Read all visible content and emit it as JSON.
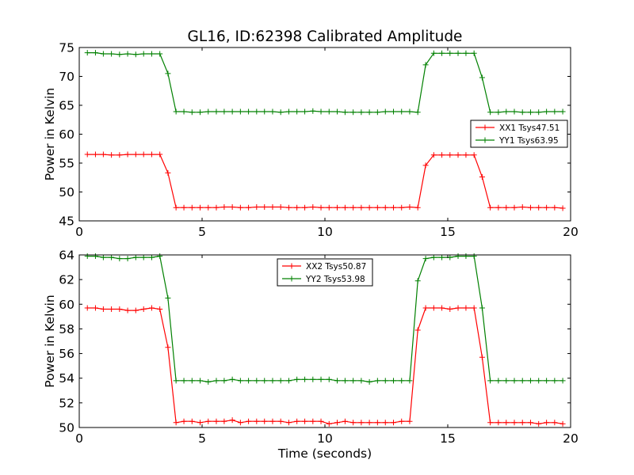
{
  "title": "GL16, ID:62398 Calibrated Amplitude",
  "colors": {
    "xx": "#ff0000",
    "yy": "#008000"
  },
  "chart_data": [
    {
      "type": "line",
      "xlabel": "",
      "ylabel": "Power in Kelvin",
      "xlim": [
        0,
        20
      ],
      "ylim": [
        45,
        75
      ],
      "xticks": [
        "0",
        "5",
        "10",
        "15",
        "20"
      ],
      "yticks": [
        "45",
        "50",
        "55",
        "60",
        "65",
        "70",
        "75"
      ],
      "legend_position": "right",
      "x": [
        0.33,
        0.66,
        0.98,
        1.31,
        1.64,
        1.97,
        2.3,
        2.62,
        2.95,
        3.28,
        3.61,
        3.94,
        4.26,
        4.59,
        4.92,
        5.25,
        5.58,
        5.9,
        6.23,
        6.56,
        6.89,
        7.22,
        7.54,
        7.87,
        8.2,
        8.53,
        8.86,
        9.18,
        9.51,
        9.84,
        10.17,
        10.5,
        10.82,
        11.15,
        11.48,
        11.81,
        12.14,
        12.46,
        12.79,
        13.12,
        13.45,
        13.78,
        14.1,
        14.43,
        14.76,
        15.09,
        15.42,
        15.74,
        16.07,
        16.4,
        16.73,
        17.06,
        17.38,
        17.71,
        18.04,
        18.37,
        18.7,
        19.02,
        19.35,
        19.68
      ],
      "series": [
        {
          "name": "XX1 Tsys47.51",
          "color": "#ff0000",
          "values": [
            56.5,
            56.5,
            56.5,
            56.4,
            56.4,
            56.5,
            56.5,
            56.5,
            56.5,
            56.5,
            53.3,
            47.3,
            47.3,
            47.3,
            47.3,
            47.3,
            47.3,
            47.4,
            47.4,
            47.3,
            47.3,
            47.4,
            47.4,
            47.4,
            47.4,
            47.3,
            47.3,
            47.3,
            47.4,
            47.3,
            47.3,
            47.3,
            47.3,
            47.3,
            47.3,
            47.3,
            47.3,
            47.3,
            47.3,
            47.3,
            47.4,
            47.3,
            54.6,
            56.4,
            56.4,
            56.4,
            56.4,
            56.4,
            56.4,
            52.6,
            47.3,
            47.3,
            47.3,
            47.3,
            47.4,
            47.3,
            47.3,
            47.3,
            47.3,
            47.2
          ]
        },
        {
          "name": "YY1 Tsys63.95",
          "color": "#008000",
          "values": [
            74.1,
            74.1,
            73.9,
            73.9,
            73.8,
            73.9,
            73.8,
            73.9,
            73.9,
            73.9,
            70.5,
            63.9,
            63.9,
            63.8,
            63.8,
            63.9,
            63.9,
            63.9,
            63.9,
            63.9,
            63.9,
            63.9,
            63.9,
            63.9,
            63.8,
            63.9,
            63.9,
            63.9,
            64.0,
            63.9,
            63.9,
            63.9,
            63.8,
            63.8,
            63.8,
            63.8,
            63.8,
            63.9,
            63.9,
            63.9,
            63.9,
            63.8,
            72.0,
            74.0,
            74.0,
            74.0,
            74.0,
            74.0,
            74.0,
            69.8,
            63.8,
            63.8,
            63.9,
            63.9,
            63.8,
            63.8,
            63.8,
            63.9,
            63.9,
            63.9
          ]
        }
      ]
    },
    {
      "type": "line",
      "xlabel": "Time (seconds)",
      "ylabel": "Power in Kelvin",
      "xlim": [
        0,
        20
      ],
      "ylim": [
        50,
        64
      ],
      "xticks": [
        "0",
        "5",
        "10",
        "15",
        "20"
      ],
      "yticks": [
        "50",
        "52",
        "54",
        "56",
        "58",
        "60",
        "62",
        "64"
      ],
      "legend_position": "top-center",
      "x": [
        0.33,
        0.66,
        0.98,
        1.31,
        1.64,
        1.97,
        2.3,
        2.62,
        2.95,
        3.28,
        3.61,
        3.94,
        4.26,
        4.59,
        4.92,
        5.25,
        5.58,
        5.9,
        6.23,
        6.56,
        6.89,
        7.22,
        7.54,
        7.87,
        8.2,
        8.53,
        8.86,
        9.18,
        9.51,
        9.84,
        10.17,
        10.5,
        10.82,
        11.15,
        11.48,
        11.81,
        12.14,
        12.46,
        12.79,
        13.12,
        13.45,
        13.78,
        14.1,
        14.43,
        14.76,
        15.09,
        15.42,
        15.74,
        16.07,
        16.4,
        16.73,
        17.06,
        17.38,
        17.71,
        18.04,
        18.37,
        18.7,
        19.02,
        19.35,
        19.68
      ],
      "series": [
        {
          "name": "XX2 Tsys50.87",
          "color": "#ff0000",
          "values": [
            59.7,
            59.7,
            59.6,
            59.6,
            59.6,
            59.5,
            59.5,
            59.6,
            59.7,
            59.6,
            56.5,
            50.4,
            50.5,
            50.5,
            50.4,
            50.5,
            50.5,
            50.5,
            50.6,
            50.4,
            50.5,
            50.5,
            50.5,
            50.5,
            50.5,
            50.4,
            50.5,
            50.5,
            50.5,
            50.5,
            50.3,
            50.4,
            50.5,
            50.4,
            50.4,
            50.4,
            50.4,
            50.4,
            50.4,
            50.5,
            50.5,
            57.9,
            59.7,
            59.7,
            59.7,
            59.6,
            59.7,
            59.7,
            59.7,
            55.7,
            50.4,
            50.4,
            50.4,
            50.4,
            50.4,
            50.4,
            50.3,
            50.4,
            50.4,
            50.3
          ]
        },
        {
          "name": "YY2 Tsys53.98",
          "color": "#008000",
          "values": [
            63.9,
            63.9,
            63.8,
            63.8,
            63.7,
            63.7,
            63.8,
            63.8,
            63.8,
            63.9,
            60.5,
            53.8,
            53.8,
            53.8,
            53.8,
            53.7,
            53.8,
            53.8,
            53.9,
            53.8,
            53.8,
            53.8,
            53.8,
            53.8,
            53.8,
            53.8,
            53.9,
            53.9,
            53.9,
            53.9,
            53.9,
            53.8,
            53.8,
            53.8,
            53.8,
            53.7,
            53.8,
            53.8,
            53.8,
            53.8,
            53.8,
            61.9,
            63.7,
            63.8,
            63.8,
            63.8,
            63.9,
            63.9,
            63.9,
            59.7,
            53.8,
            53.8,
            53.8,
            53.8,
            53.8,
            53.8,
            53.8,
            53.8,
            53.8,
            53.8
          ]
        }
      ]
    }
  ]
}
